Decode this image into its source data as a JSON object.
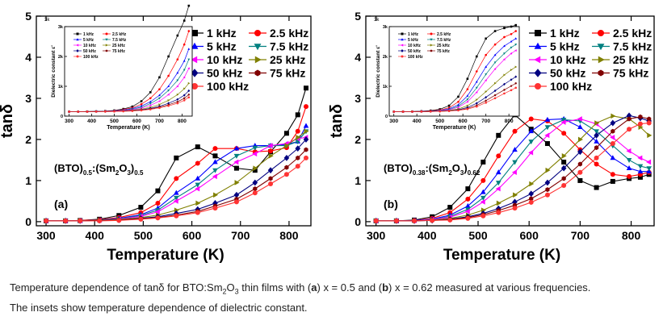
{
  "caption": {
    "line1_pre": "Temperature dependence of tanδ for BTO:Sm",
    "line1_sub1": "2",
    "line1_mid": "O",
    "line1_sub2": "3",
    "line1_a_pre": " thin films with (",
    "line1_a": "a",
    "line1_a_post": ") x = 0.5 and (",
    "line1_b": "b",
    "line1_b_post": ") x = 0.62 measured at various frequencies.",
    "line2": "The insets show temperature dependence of dielectric constant."
  },
  "colors": {
    "1 kHz": "#000000",
    "2.5 kHz": "#ff0000",
    "5 kHz": "#0000ff",
    "7.5 kHz": "#008080",
    "10 kHz": "#ff00ff",
    "25 kHz": "#808000",
    "50 kHz": "#000080",
    "75 kHz": "#800000",
    "100 kHz": "#ff3333"
  },
  "markers": {
    "1 kHz": "square",
    "2.5 kHz": "circle",
    "5 kHz": "triangle-up",
    "7.5 kHz": "triangle-down",
    "10 kHz": "triangle-left",
    "25 kHz": "triangle-right",
    "50 kHz": "diamond",
    "75 kHz": "hexagon",
    "100 kHz": "circle"
  },
  "chart_data": [
    {
      "type": "line",
      "panel_label": "(a)",
      "composition": {
        "p1": "(BTO)",
        "s1": "0.5",
        "p2": ":(Sm",
        "s2": "2",
        "p3": "O",
        "s3": "3",
        "p4": ")",
        "s4": "0.5"
      },
      "xlabel": "Temperature (K)",
      "ylabel": "tanδ",
      "xlim": [
        280,
        845
      ],
      "ylim": [
        -0.1,
        5
      ],
      "xticks": [
        300,
        400,
        500,
        600,
        700,
        800
      ],
      "yticks": [
        0,
        1,
        2,
        3,
        4,
        5
      ],
      "top_tick_label": "3k",
      "legend_position": "top-right",
      "x": [
        300,
        340,
        370,
        410,
        450,
        495,
        530,
        568,
        612,
        648,
        692,
        730,
        762,
        795,
        818,
        835
      ],
      "series": [
        {
          "name": "1 kHz",
          "values": [
            0.02,
            0.02,
            0.03,
            0.06,
            0.15,
            0.35,
            0.75,
            1.55,
            1.82,
            1.6,
            1.3,
            1.25,
            1.7,
            2.15,
            2.6,
            3.25
          ]
        },
        {
          "name": "2.5 kHz",
          "values": [
            0.02,
            0.02,
            0.03,
            0.05,
            0.1,
            0.22,
            0.45,
            1.05,
            1.42,
            1.78,
            1.78,
            1.7,
            1.72,
            1.8,
            2.2,
            2.8
          ]
        },
        {
          "name": "5 kHz",
          "values": [
            0.02,
            0.02,
            0.02,
            0.04,
            0.08,
            0.17,
            0.33,
            0.7,
            1.05,
            1.45,
            1.78,
            1.85,
            1.85,
            1.88,
            1.95,
            2.33
          ]
        },
        {
          "name": "7.5 kHz",
          "values": [
            0.02,
            0.02,
            0.02,
            0.04,
            0.07,
            0.15,
            0.28,
            0.58,
            0.9,
            1.25,
            1.6,
            1.8,
            1.85,
            1.85,
            1.95,
            2.2
          ]
        },
        {
          "name": "10 kHz",
          "values": [
            0.02,
            0.02,
            0.02,
            0.03,
            0.06,
            0.13,
            0.24,
            0.5,
            0.8,
            1.1,
            1.45,
            1.65,
            1.85,
            1.9,
            2.02,
            2.05
          ]
        },
        {
          "name": "25 kHz",
          "values": [
            0.02,
            0.02,
            0.02,
            0.03,
            0.05,
            0.1,
            0.16,
            0.28,
            0.45,
            0.65,
            0.95,
            1.3,
            1.6,
            1.85,
            2.05,
            2.2
          ]
        },
        {
          "name": "50 kHz",
          "values": [
            0.02,
            0.02,
            0.02,
            0.03,
            0.04,
            0.08,
            0.12,
            0.2,
            0.3,
            0.45,
            0.65,
            0.95,
            1.25,
            1.55,
            1.78,
            2.0
          ]
        },
        {
          "name": "75 kHz",
          "values": [
            0.02,
            0.02,
            0.02,
            0.03,
            0.04,
            0.07,
            0.1,
            0.16,
            0.25,
            0.38,
            0.55,
            0.8,
            1.05,
            1.32,
            1.55,
            1.75
          ]
        },
        {
          "name": "100 kHz",
          "values": [
            0.02,
            0.02,
            0.02,
            0.02,
            0.03,
            0.06,
            0.09,
            0.14,
            0.22,
            0.33,
            0.48,
            0.7,
            0.92,
            1.15,
            1.35,
            1.55
          ]
        }
      ],
      "inset": {
        "xlabel": "Temperature (K)",
        "ylabel": "Dielectric constant ε'",
        "xlim": [
          280,
          845
        ],
        "ylim": [
          0,
          3000
        ],
        "xticks": [
          300,
          400,
          500,
          600,
          700,
          800
        ],
        "yticks": [
          0,
          1000,
          2000,
          3000
        ],
        "ytick_labels": [
          "0",
          "1k",
          "2k",
          "3k"
        ],
        "x": [
          300,
          340,
          380,
          420,
          460,
          500,
          540,
          580,
          620,
          660,
          700,
          740,
          780,
          810,
          830
        ],
        "series": [
          {
            "name": "1 kHz",
            "values": [
              150,
              150,
              155,
              160,
              170,
              190,
              240,
              320,
              500,
              800,
              1300,
              2000,
              2700,
              3200,
              3700
            ]
          },
          {
            "name": "2.5 kHz",
            "values": [
              150,
              150,
              153,
              158,
              165,
              180,
              220,
              280,
              400,
              600,
              900,
              1350,
              1900,
              2400,
              2850
            ]
          },
          {
            "name": "5 kHz",
            "values": [
              150,
              150,
              152,
              156,
              162,
              175,
              205,
              255,
              340,
              480,
              700,
              1000,
              1450,
              1850,
              2250
            ]
          },
          {
            "name": "7.5 kHz",
            "values": [
              150,
              150,
              152,
              155,
              160,
              170,
              195,
              235,
              300,
              420,
              600,
              860,
              1200,
              1550,
              1900
            ]
          },
          {
            "name": "10 kHz",
            "values": [
              150,
              150,
              151,
              154,
              158,
              166,
              185,
              215,
              270,
              360,
              500,
              720,
              1000,
              1300,
              1600
            ]
          },
          {
            "name": "25 kHz",
            "values": [
              150,
              150,
              151,
              153,
              156,
              162,
              175,
              198,
              235,
              295,
              390,
              530,
              720,
              920,
              1100
            ]
          },
          {
            "name": "50 kHz",
            "values": [
              150,
              150,
              151,
              152,
              155,
              160,
              170,
              188,
              215,
              260,
              330,
              430,
              560,
              700,
              850
            ]
          },
          {
            "name": "75 kHz",
            "values": [
              150,
              150,
              150,
              152,
              154,
              158,
              166,
              180,
              205,
              240,
              300,
              380,
              480,
              600,
              720
            ]
          },
          {
            "name": "100 kHz",
            "values": [
              150,
              150,
              150,
              151,
              153,
              156,
              162,
              173,
              193,
              225,
              275,
              345,
              430,
              530,
              630
            ]
          }
        ]
      }
    },
    {
      "type": "line",
      "panel_label": "(b)",
      "composition": {
        "p1": "(BTO)",
        "s1": "0.38",
        "p2": ":(Sm",
        "s2": "2",
        "p3": "O",
        "s3": "3",
        "p4": ")",
        "s4": "0.62"
      },
      "xlabel": "Temperature (K)",
      "ylabel": "tanδ",
      "xlim": [
        280,
        845
      ],
      "ylim": [
        -0.1,
        5
      ],
      "xticks": [
        300,
        400,
        500,
        600,
        700,
        800
      ],
      "yticks": [
        0,
        1,
        2,
        3,
        4,
        5
      ],
      "top_tick_label": "3k",
      "legend_position": "top-right",
      "x": [
        300,
        340,
        375,
        410,
        445,
        480,
        510,
        540,
        572,
        604,
        636,
        668,
        700,
        732,
        764,
        796,
        818,
        835
      ],
      "series": [
        {
          "name": "1 kHz",
          "values": [
            0.02,
            0.02,
            0.04,
            0.12,
            0.35,
            0.8,
            1.45,
            2.1,
            2.6,
            2.25,
            1.9,
            1.45,
            1.0,
            0.83,
            0.98,
            1.05,
            1.08,
            1.15
          ]
        },
        {
          "name": "2.5 kHz",
          "values": [
            0.02,
            0.02,
            0.03,
            0.08,
            0.22,
            0.55,
            1.0,
            1.6,
            2.2,
            2.5,
            2.45,
            2.15,
            1.75,
            1.4,
            1.15,
            1.1,
            1.15,
            1.2
          ]
        },
        {
          "name": "5 kHz",
          "values": [
            0.02,
            0.02,
            0.03,
            0.06,
            0.16,
            0.38,
            0.72,
            1.2,
            1.75,
            2.2,
            2.48,
            2.5,
            2.3,
            1.95,
            1.55,
            1.3,
            1.22,
            1.22
          ]
        },
        {
          "name": "7.5 kHz",
          "values": [
            0.02,
            0.02,
            0.02,
            0.05,
            0.13,
            0.3,
            0.58,
            0.95,
            1.45,
            1.95,
            2.3,
            2.48,
            2.45,
            2.2,
            1.85,
            1.5,
            1.35,
            1.3
          ]
        },
        {
          "name": "10 kHz",
          "values": [
            0.02,
            0.02,
            0.02,
            0.05,
            0.11,
            0.25,
            0.48,
            0.8,
            1.2,
            1.68,
            2.1,
            2.42,
            2.5,
            2.38,
            2.05,
            1.72,
            1.55,
            1.45
          ]
        },
        {
          "name": "25 kHz",
          "values": [
            0.02,
            0.02,
            0.02,
            0.04,
            0.08,
            0.16,
            0.28,
            0.45,
            0.65,
            0.92,
            1.25,
            1.6,
            2.0,
            2.4,
            2.57,
            2.5,
            2.3,
            2.1
          ]
        },
        {
          "name": "50 kHz",
          "values": [
            0.02,
            0.02,
            0.02,
            0.03,
            0.06,
            0.12,
            0.2,
            0.32,
            0.48,
            0.68,
            0.95,
            1.3,
            1.7,
            2.1,
            2.4,
            2.58,
            2.52,
            2.45
          ]
        },
        {
          "name": "75 kHz",
          "values": [
            0.02,
            0.02,
            0.02,
            0.03,
            0.05,
            0.1,
            0.17,
            0.27,
            0.4,
            0.56,
            0.78,
            1.05,
            1.4,
            1.8,
            2.2,
            2.5,
            2.55,
            2.5
          ]
        },
        {
          "name": "100 kHz",
          "values": [
            0.02,
            0.02,
            0.02,
            0.03,
            0.04,
            0.08,
            0.14,
            0.22,
            0.33,
            0.47,
            0.65,
            0.88,
            1.2,
            1.55,
            1.9,
            2.25,
            2.38,
            2.4
          ]
        }
      ],
      "inset": {
        "xlabel": "Temperature (K)",
        "ylabel": "Dielectric constant ε'",
        "xlim": [
          280,
          845
        ],
        "ylim": [
          0,
          3000
        ],
        "xticks": [
          300,
          400,
          500,
          600,
          700,
          800
        ],
        "yticks": [
          0,
          1000,
          2000,
          3000
        ],
        "ytick_labels": [
          "0",
          "1k",
          "2k",
          "3k"
        ],
        "x": [
          300,
          340,
          380,
          420,
          460,
          500,
          540,
          580,
          620,
          660,
          700,
          740,
          780,
          810,
          830
        ],
        "series": [
          {
            "name": "1 kHz",
            "values": [
              150,
              150,
              155,
              165,
              185,
              230,
              350,
              650,
              1250,
              2000,
              2600,
              2850,
              2950,
              3000,
              3050
            ]
          },
          {
            "name": "2.5 kHz",
            "values": [
              150,
              150,
              153,
              160,
              175,
              205,
              280,
              480,
              900,
              1500,
              2050,
              2400,
              2650,
              2750,
              2850
            ]
          },
          {
            "name": "5 kHz",
            "values": [
              150,
              150,
              152,
              157,
              168,
              190,
              245,
              380,
              680,
              1150,
              1650,
              2050,
              2350,
              2500,
              2600
            ]
          },
          {
            "name": "7.5 kHz",
            "values": [
              150,
              150,
              152,
              156,
              165,
              183,
              225,
              330,
              560,
              950,
              1400,
              1800,
              2100,
              2300,
              2400
            ]
          },
          {
            "name": "10 kHz",
            "values": [
              150,
              150,
              151,
              155,
              162,
              177,
              212,
              295,
              480,
              800,
              1200,
              1580,
              1900,
              2100,
              2200
            ]
          },
          {
            "name": "25 kHz",
            "values": [
              150,
              150,
              151,
              153,
              158,
              168,
              190,
              240,
              350,
              550,
              820,
              1100,
              1380,
              1550,
              1650
            ]
          },
          {
            "name": "50 kHz",
            "values": [
              150,
              150,
              150,
              152,
              156,
              163,
              180,
              215,
              290,
              430,
              630,
              850,
              1070,
              1220,
              1320
            ]
          },
          {
            "name": "75 kHz",
            "values": [
              150,
              150,
              150,
              152,
              155,
              160,
              174,
              200,
              255,
              360,
              520,
              700,
              880,
              1010,
              1100
            ]
          },
          {
            "name": "100 kHz",
            "values": [
              150,
              150,
              150,
              151,
              154,
              158,
              170,
              192,
              235,
              320,
              450,
              600,
              760,
              870,
              950
            ]
          }
        ]
      }
    }
  ]
}
